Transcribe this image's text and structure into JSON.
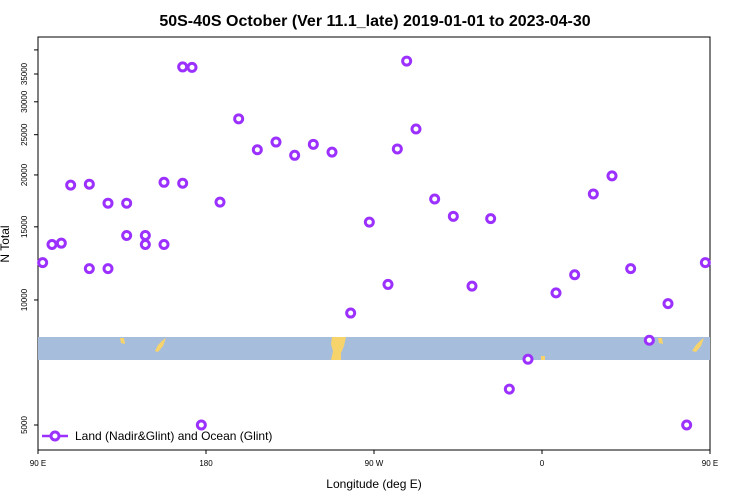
{
  "chart_data": {
    "type": "scatter",
    "title": "50S-40S October (Ver 11.1_late)   2019-01-01 to 2023-04-30",
    "xlabel": "Longitude (deg E)",
    "ylabel": "N Total",
    "y_scale": "log",
    "ylim": [
      4300,
      43000
    ],
    "x_ticks": [
      "90 E",
      "180",
      "90 W",
      "0",
      "90 E",
      "180"
    ],
    "y_ticks": [
      5000,
      10000,
      15000,
      20000,
      25000,
      30000,
      35000
    ],
    "grid": false,
    "legend_position": "bottom-left",
    "series": [
      {
        "name": "Land (Nadir&Glint) and Ocean (Glint)",
        "color": "#9b30ff",
        "x": [
          92.5,
          102.5,
          117.5,
          127.5,
          137.5,
          147.5,
          157.5,
          167.5,
          172.5,
          187.5,
          197.5,
          207.5,
          217.5,
          227.5,
          237.5,
          247.5,
          257.5,
          267.5,
          277.5,
          282.5,
          287.5,
          292.5,
          302.5,
          312.5,
          322.5,
          332.5,
          342.5,
          352.5,
          7.5,
          17.5,
          27.5,
          37.5,
          47.5,
          57.5,
          67.5,
          77.5,
          87.5,
          97.5,
          107.5,
          117.5,
          127.5,
          137.5,
          147.5,
          157.5,
          167.5,
          177.5
        ],
        "values": [
          12300,
          13700,
          19000,
          11900,
          17100,
          14300,
          13600,
          19100,
          36300,
          17200,
          27300,
          23000,
          24000,
          22300,
          23700,
          22700,
          9300,
          15400,
          10900,
          23100,
          37600,
          25800,
          17500,
          15900,
          10800,
          15700,
          6100,
          7200,
          10400,
          11500,
          18000,
          19900,
          11900,
          8000,
          9800,
          5000,
          12300,
          13600,
          18900,
          11900,
          17100,
          14300,
          13600,
          19200,
          36400,
          5000
        ]
      }
    ]
  }
}
